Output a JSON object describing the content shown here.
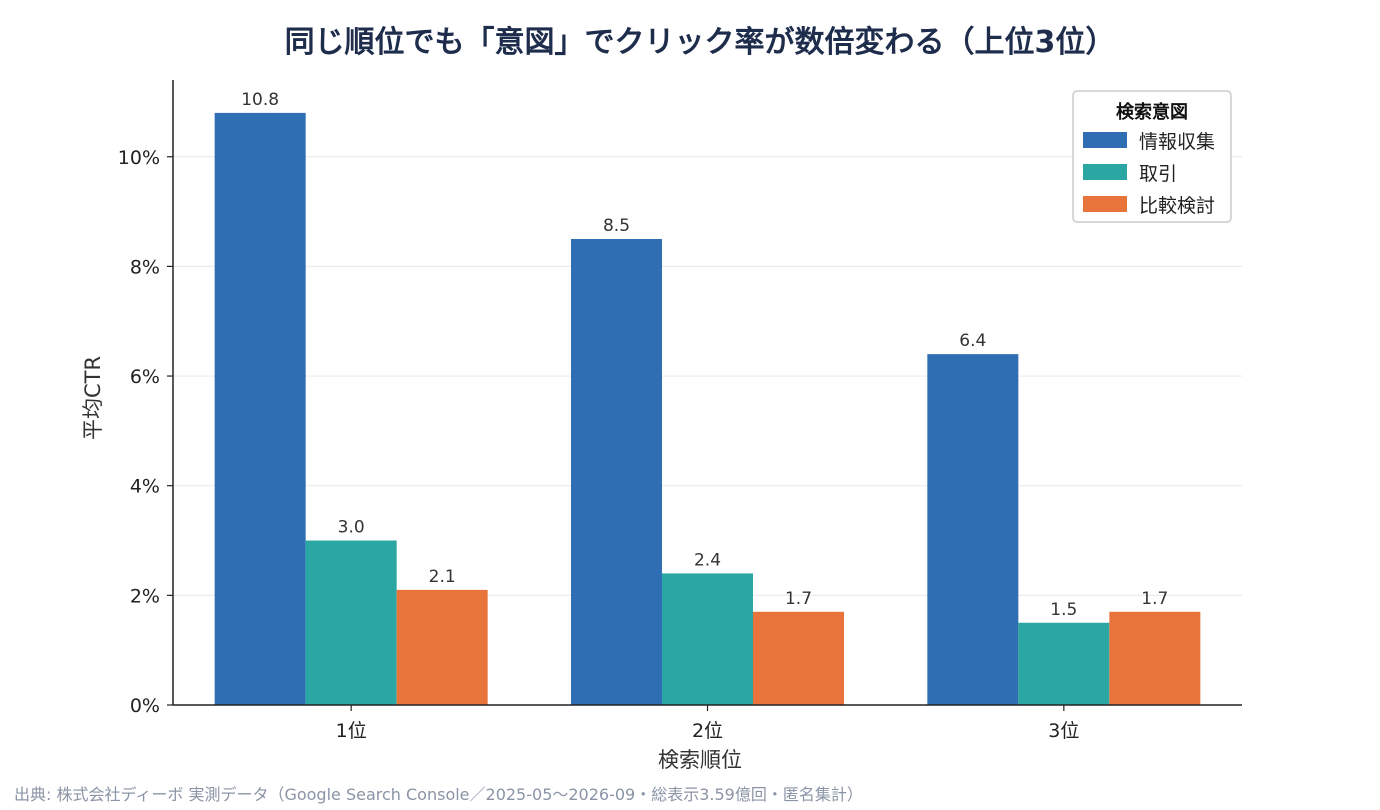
{
  "chart_data": {
    "type": "bar",
    "title": "同じ順位でも「意図」でクリック率が数倍変わる（上位3位）",
    "xlabel": "検索順位",
    "ylabel": "平均CTR",
    "categories": [
      "1位",
      "2位",
      "3位"
    ],
    "series": [
      {
        "name": "情報収集",
        "values": [
          10.8,
          8.5,
          6.4
        ],
        "color": "#2f6eb3"
      },
      {
        "name": "取引",
        "values": [
          3.0,
          2.4,
          1.5
        ],
        "color": "#2aa7a3"
      },
      {
        "name": "比較検討",
        "values": [
          2.1,
          1.7,
          1.7
        ],
        "color": "#e8743b"
      }
    ],
    "ylim": [
      0,
      11.4
    ],
    "yticks": [
      0,
      2,
      4,
      6,
      8,
      10
    ],
    "ytick_suffix": "%",
    "legend_title": "検索意図",
    "legend_position": "top-right",
    "grid": "horizontal",
    "source": "出典: 株式会社ディーボ 実測データ（Google Search Console／2025-05〜2026-09・総表示3.59億回・匿名集計）"
  }
}
